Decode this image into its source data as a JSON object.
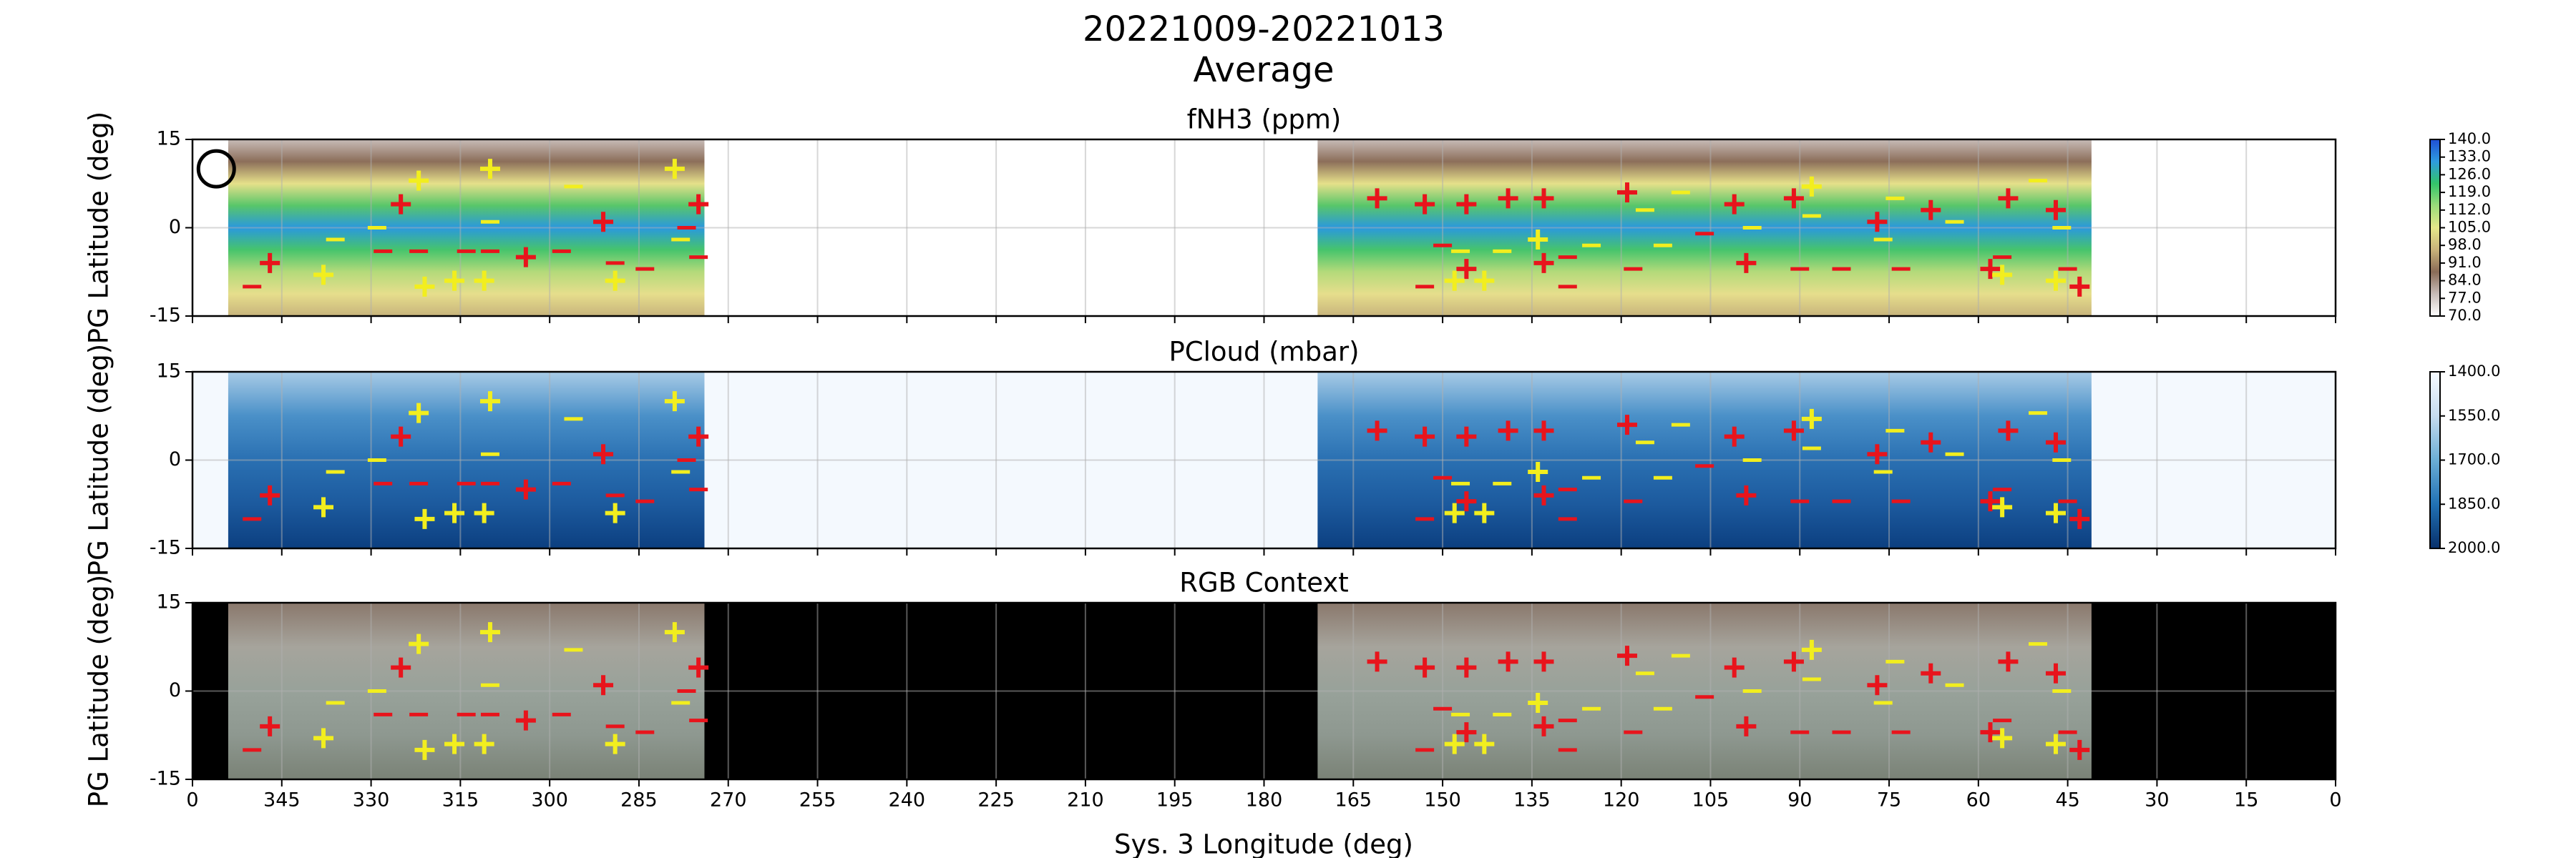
{
  "chart_data": {
    "type": "heatmap-panels",
    "title": "20221009-20221013",
    "subtitle": "Average",
    "xlabel": "Sys. 3 Longitude (deg)",
    "xlim": [
      360,
      0
    ],
    "xticks": [
      {
        "value": 360,
        "label": "0"
      },
      345,
      330,
      315,
      300,
      285,
      270,
      255,
      240,
      225,
      210,
      195,
      180,
      165,
      150,
      135,
      120,
      105,
      90,
      75,
      60,
      45,
      30,
      15,
      0
    ],
    "grid": true,
    "swaths": [
      [
        354,
        274
      ],
      [
        171,
        41
      ]
    ],
    "circle": {
      "x": 356,
      "y": 10
    },
    "markers": [
      {
        "marker": "plus",
        "color": "#e8141c",
        "x": [
          347,
          325,
          291,
          275,
          304,
          161,
          153,
          146,
          139,
          133,
          146,
          133,
          119,
          101,
          99,
          91,
          77,
          68,
          55,
          58,
          47,
          43
        ],
        "y": [
          -6,
          4,
          1,
          4,
          -5,
          5,
          4,
          4,
          5,
          5,
          -7,
          -6,
          6,
          4,
          -6,
          5,
          1,
          3,
          5,
          -7,
          3,
          -10
        ]
      },
      {
        "marker": "plus",
        "color": "#f2ee1e",
        "x": [
          338,
          322,
          321,
          316,
          311,
          310,
          289,
          279,
          148,
          143,
          134,
          88,
          56,
          47
        ],
        "y": [
          -8,
          8,
          -10,
          -9,
          -9,
          10,
          -9,
          10,
          -9,
          -9,
          -2,
          7,
          -8,
          -9
        ]
      },
      {
        "marker": "minus",
        "color": "#e8141c",
        "x": [
          350,
          328,
          322,
          314,
          310,
          298,
          289,
          284,
          275,
          277,
          150,
          153,
          129,
          129,
          118,
          106,
          90,
          83,
          73,
          56,
          45
        ],
        "y": [
          -10,
          -4,
          -4,
          -4,
          -4,
          -4,
          -6,
          -7,
          -5,
          0,
          -3,
          -10,
          -5,
          -10,
          -7,
          -1,
          -7,
          -7,
          -7,
          -5,
          -7
        ]
      },
      {
        "marker": "minus",
        "color": "#f2ee1e",
        "x": [
          336,
          329,
          310,
          296,
          278,
          147,
          140,
          125,
          116,
          110,
          113,
          98,
          88,
          76,
          74,
          64,
          50,
          46
        ],
        "y": [
          -2,
          0,
          1,
          7,
          -2,
          -4,
          -4,
          -3,
          3,
          6,
          -3,
          0,
          2,
          -2,
          5,
          1,
          8,
          0
        ]
      }
    ],
    "panels": [
      {
        "title": "fNH3 (ppm)",
        "ylabel": "PG Latitude (deg)",
        "ylim": [
          -15,
          15
        ],
        "yticks": [
          -15,
          0,
          15
        ],
        "background": "#ffffff",
        "heat_colors": [
          "#c8bcb8",
          "#8c6e5a",
          "#e6e08a",
          "#58c66a",
          "#2a98de",
          "#46c46c",
          "#b4da7a",
          "#e6de8c",
          "#c8b47c"
        ],
        "clim": [
          70,
          140
        ],
        "colormap": [
          "#ffffff",
          "#c8bcb8",
          "#8a6b57",
          "#c9b27a",
          "#e6e88a",
          "#9bdc7a",
          "#33c46a",
          "#2e9be0",
          "#1f4fd6"
        ],
        "cticks": [
          {
            "value": 70,
            "label": "70.0"
          },
          {
            "value": 77,
            "label": "77.0"
          },
          {
            "value": 84,
            "label": "84.0"
          },
          {
            "value": 91,
            "label": "91.0"
          },
          {
            "value": 98,
            "label": "98.0"
          },
          {
            "value": 105,
            "label": "105.0"
          },
          {
            "value": 112,
            "label": "112.0"
          },
          {
            "value": 119,
            "label": "119.0"
          },
          {
            "value": 126,
            "label": "126.0"
          },
          {
            "value": 133,
            "label": "133.0"
          },
          {
            "value": 140,
            "label": "140.0"
          }
        ]
      },
      {
        "title": "PCloud (mbar)",
        "ylabel": "PG Latitude (deg)",
        "ylim": [
          -15,
          15
        ],
        "yticks": [
          -15,
          0,
          15
        ],
        "background": "#f4f9fe",
        "heat_colors": [
          "#a8cbe6",
          "#4a90c8",
          "#2a70b2",
          "#1c5a9e",
          "#0c3f80"
        ],
        "clim": [
          2000,
          1400
        ],
        "colormap": [
          "#08306b",
          "#2171b5",
          "#6baed6",
          "#c6dbef",
          "#f7fbff"
        ],
        "cticks": [
          {
            "value": 1400,
            "label": "1400.0"
          },
          {
            "value": 1550,
            "label": "1550.0"
          },
          {
            "value": 1700,
            "label": "1700.0"
          },
          {
            "value": 1850,
            "label": "1850.0"
          },
          {
            "value": 2000,
            "label": "2000.0"
          }
        ]
      },
      {
        "title": "RGB Context",
        "ylabel": "PG Latitude (deg)",
        "ylim": [
          -15,
          15
        ],
        "yticks": [
          -15,
          0,
          15
        ],
        "background": "#000000",
        "heat_colors": [
          "#8a786c",
          "#a6a49c",
          "#98a29a",
          "#8e9890",
          "#7a8276"
        ]
      }
    ]
  }
}
